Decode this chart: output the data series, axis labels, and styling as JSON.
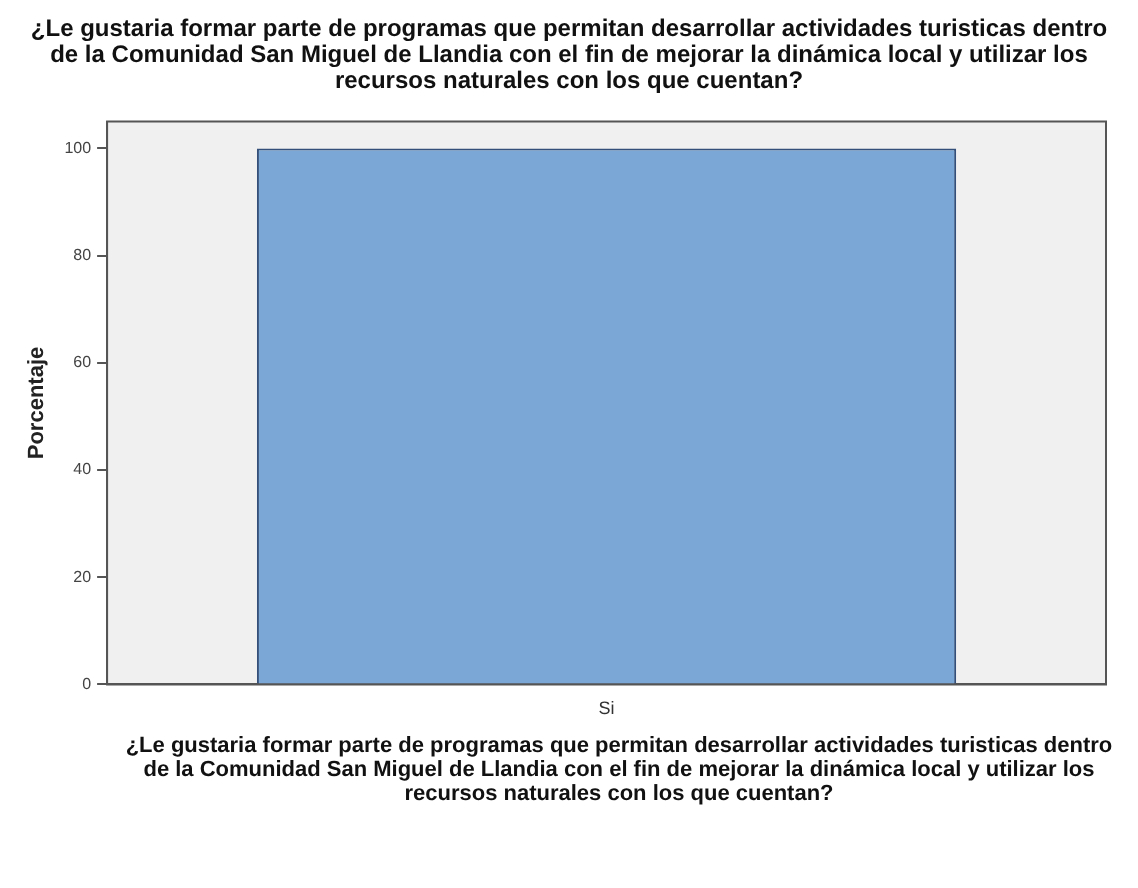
{
  "chart_data": {
    "type": "bar",
    "title": "¿Le gustaria formar parte de programas que permitan desarrollar actividades turisticas dentro de la Comunidad San Miguel de Llandia con el fin de mejorar la dinámica local y utilizar los recursos naturales con los que cuentan?",
    "xlabel": "¿Le gustaria formar parte de programas que permitan desarrollar actividades turisticas dentro de la Comunidad San Miguel de Llandia con el fin de mejorar la dinámica local y utilizar los recursos naturales con los que cuentan?",
    "ylabel": "Porcentaje",
    "categories": [
      "Si"
    ],
    "values": [
      100
    ],
    "color": "#7ba7d7",
    "ylim": [
      0,
      105
    ],
    "yticks": [
      0,
      20,
      40,
      60,
      80,
      100
    ],
    "grid": false,
    "legend": false
  }
}
